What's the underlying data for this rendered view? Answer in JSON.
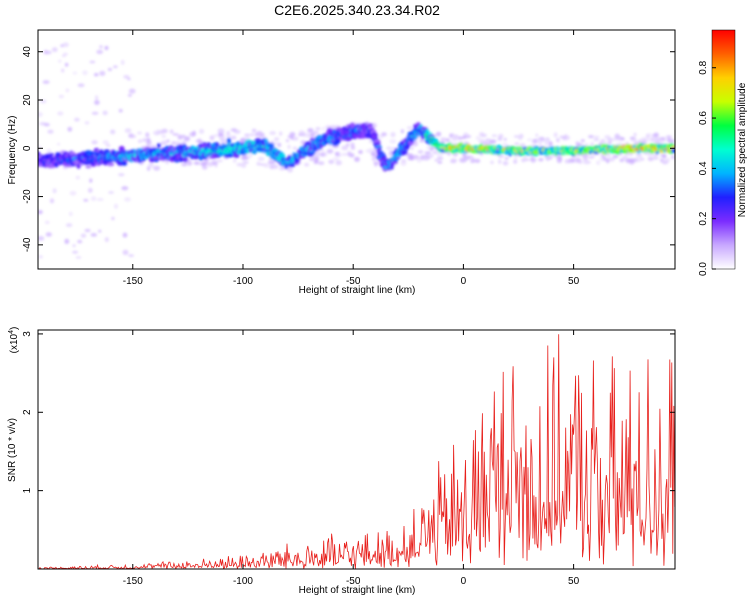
{
  "title": "C2E6.2025.340.23.34.R02",
  "chart_data": [
    {
      "type": "heatmap",
      "xlabel": "Height of straight line (km)",
      "ylabel": "Frequency (Hz)",
      "xlim": [
        -193,
        96
      ],
      "ylim": [
        -50,
        49
      ],
      "xticks": [
        -150,
        -100,
        -50,
        0,
        50
      ],
      "yticks": [
        -40,
        -20,
        0,
        20,
        40
      ],
      "colorbar": {
        "label": "Normalized spectral amplitude",
        "range": [
          0,
          0.95
        ],
        "ticks": [
          0.0,
          0.2,
          0.4,
          0.6,
          0.8
        ],
        "colormap": [
          "#ffffff",
          "#c8a8ff",
          "#7b2cff",
          "#2020ff",
          "#00b4ff",
          "#00ffd0",
          "#00ff40",
          "#c8ff00",
          "#ffd000",
          "#ff6000",
          "#ff0000"
        ]
      },
      "ridge": [
        {
          "x": -190,
          "f": -5,
          "amp": 0.25
        },
        {
          "x": -170,
          "f": -4,
          "amp": 0.3
        },
        {
          "x": -150,
          "f": -3,
          "amp": 0.35
        },
        {
          "x": -130,
          "f": -2,
          "amp": 0.35
        },
        {
          "x": -110,
          "f": -1,
          "amp": 0.4
        },
        {
          "x": -90,
          "f": 1,
          "amp": 0.4
        },
        {
          "x": -80,
          "f": -6,
          "amp": 0.35
        },
        {
          "x": -65,
          "f": 3,
          "amp": 0.35
        },
        {
          "x": -50,
          "f": 7,
          "amp": 0.3
        },
        {
          "x": -42,
          "f": 8,
          "amp": 0.25
        },
        {
          "x": -35,
          "f": -8,
          "amp": 0.35
        },
        {
          "x": -20,
          "f": 8,
          "amp": 0.35
        },
        {
          "x": -10,
          "f": 0,
          "amp": 0.55
        },
        {
          "x": 0,
          "f": 0,
          "amp": 0.75
        },
        {
          "x": 25,
          "f": -1,
          "amp": 0.6
        },
        {
          "x": 50,
          "f": -1,
          "amp": 0.6
        },
        {
          "x": 75,
          "f": 0,
          "amp": 0.7
        },
        {
          "x": 95,
          "f": 0,
          "amp": 0.7
        }
      ]
    },
    {
      "type": "line",
      "xlabel": "Height of straight line (km)",
      "ylabel": "SNR (10 * v/v)",
      "multiplier": "(x10",
      "multiplier_exp": "4",
      "xlim": [
        -193,
        96
      ],
      "ylim": [
        0,
        3.05
      ],
      "xticks": [
        -150,
        -100,
        -50,
        0,
        50
      ],
      "yticks": [
        1,
        2,
        3
      ],
      "color": "#e8201c",
      "envelope": {
        "x": [
          -193,
          -160,
          -140,
          -120,
          -100,
          -80,
          -60,
          -40,
          -30,
          -20,
          -10,
          0,
          10,
          20,
          30,
          40,
          50,
          60,
          70,
          80,
          96
        ],
        "y": [
          0.02,
          0.05,
          0.08,
          0.12,
          0.18,
          0.3,
          0.4,
          0.45,
          0.5,
          0.9,
          1.3,
          1.7,
          2.3,
          2.7,
          2.6,
          2.6,
          2.7,
          2.6,
          2.5,
          2.6,
          2.8
        ]
      }
    }
  ]
}
